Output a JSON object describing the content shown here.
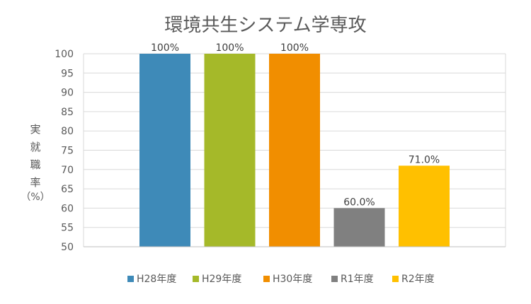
{
  "chart_data": {
    "type": "bar",
    "title": "環境共生システム学専攻",
    "ylabel_chars": [
      "実",
      "就",
      "職",
      "率",
      "（%）"
    ],
    "ylim": [
      50,
      100
    ],
    "yticks": [
      50,
      55,
      60,
      65,
      70,
      75,
      80,
      85,
      90,
      95,
      100
    ],
    "grid": true,
    "legend_position": "bottom",
    "series": [
      {
        "name": "H28年度",
        "value": 100,
        "label": "100%",
        "color": "#3E8AB8"
      },
      {
        "name": "H29年度",
        "value": 100,
        "label": "100%",
        "color": "#A5B929"
      },
      {
        "name": "H30年度",
        "value": 100,
        "label": "100%",
        "color": "#F18E00"
      },
      {
        "name": "R1年度",
        "value": 60.0,
        "label": "60.0%",
        "color": "#808080"
      },
      {
        "name": "R2年度",
        "value": 71.0,
        "label": "71.0%",
        "color": "#FFC000"
      }
    ]
  }
}
